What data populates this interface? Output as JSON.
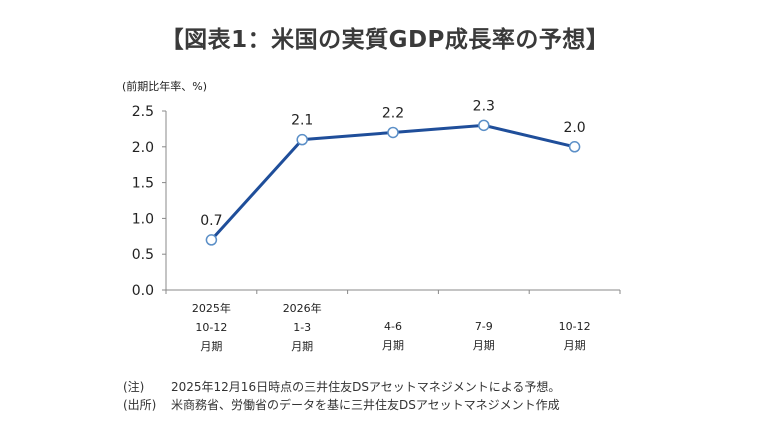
{
  "title": "【図表1：米国の実質GDP成長率の予想】",
  "unit_label": "(前期比年率、%)",
  "chart_data": {
    "type": "line",
    "title": "【図表1：米国の実質GDP成長率の予想】",
    "ylabel": "(前期比年率、%)",
    "xlabel": "",
    "ylim": [
      0,
      2.5
    ],
    "yticks": [
      "0.0",
      "0.5",
      "1.0",
      "1.5",
      "2.0",
      "2.5"
    ],
    "categories": [
      [
        "2025年",
        "10-12",
        "月期"
      ],
      [
        "2026年",
        "1-3",
        "月期"
      ],
      [
        "4-6",
        "月期"
      ],
      [
        "7-9",
        "月期"
      ],
      [
        "10-12",
        "月期"
      ]
    ],
    "series": [
      {
        "name": "米国の実質GDP成長率",
        "values": [
          0.7,
          2.1,
          2.2,
          2.3,
          2.0
        ],
        "labels": [
          "0.7",
          "2.1",
          "2.2",
          "2.3",
          "2.0"
        ]
      }
    ],
    "line_color": "#1f4e9a",
    "marker_fill": "#ffffff",
    "marker_stroke": "#5b8fc7"
  },
  "notes": [
    {
      "label": "(注)",
      "text": "2025年12月16日時点の三井住友DSアセットマネジメントによる予想。"
    },
    {
      "label": "(出所)",
      "text": "米商務省、労働省のデータを基に三井住友DSアセットマネジメント作成"
    }
  ]
}
